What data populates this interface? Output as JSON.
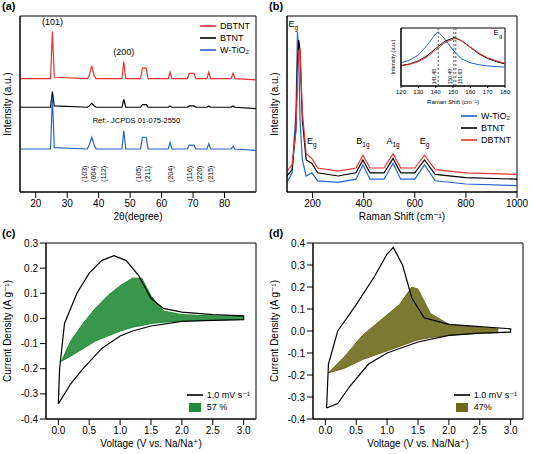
{
  "chart_data": [
    {
      "panel_label": "(a)",
      "type": "line",
      "x_label": "2θ(degree)",
      "y_label": "Intensity (a.u.)",
      "x": [
        15,
        24.7,
        25.3,
        25.9,
        36.4,
        37,
        37.8,
        38.6,
        39.2,
        47.4,
        48,
        48.6,
        53.3,
        53.9,
        55.1,
        55.7,
        62.1,
        62.7,
        63.3,
        68.2,
        68.8,
        70.3,
        70.9,
        74.4,
        75,
        75.6,
        82.1,
        82.7,
        83.3,
        90
      ],
      "series": [
        {
          "name": "DBTNT",
          "color": "#e8322f",
          "values": [
            62,
            62,
            98,
            63,
            62,
            64,
            72,
            64,
            62,
            62,
            75,
            62,
            62,
            70,
            70,
            62,
            62,
            67,
            62,
            62,
            66,
            66,
            62,
            62,
            67,
            62,
            62,
            66,
            62,
            61
          ]
        },
        {
          "name": "BTNT",
          "color": "#000000",
          "values": [
            40,
            40,
            52,
            41,
            40,
            41,
            43,
            41,
            40,
            40,
            46,
            40,
            40,
            42,
            42,
            40,
            40,
            41,
            40,
            40,
            41,
            41,
            40,
            40,
            41,
            40,
            40,
            41,
            40,
            39
          ]
        },
        {
          "name": "W-TiO₂",
          "color": "#2563c9",
          "values": [
            8,
            8,
            48,
            9,
            8,
            11,
            17,
            11,
            8,
            8,
            22,
            8,
            8,
            17,
            17,
            8,
            8,
            13,
            8,
            8,
            11,
            11,
            8,
            8,
            12,
            8,
            8,
            10,
            8,
            7
          ]
        }
      ],
      "xlim": [
        15,
        90
      ],
      "xticks": [
        20,
        30,
        40,
        50,
        60,
        70,
        80
      ],
      "ylim": [
        -25,
        110
      ],
      "tick_labels": "x",
      "legend": "upper right",
      "annotations": [
        {
          "text": "(101)",
          "x": 25.3,
          "y": 103
        },
        {
          "text": "(200)",
          "x": 48,
          "y": 80
        },
        {
          "text": "(103)",
          "x": 35.5,
          "y": -11
        },
        {
          "text": "(004)",
          "x": 38.5,
          "y": -11
        },
        {
          "text": "(112)",
          "x": 41.5,
          "y": -11
        },
        {
          "text": "(105)",
          "x": 52.5,
          "y": -11
        },
        {
          "text": "(211)",
          "x": 55.5,
          "y": -11
        },
        {
          "text": "(204)",
          "x": 62.7,
          "y": -11
        },
        {
          "text": "(116)",
          "x": 68.8,
          "y": -11
        },
        {
          "text": "(220)",
          "x": 72,
          "y": -11
        },
        {
          "text": "(215)",
          "x": 75.5,
          "y": -11
        },
        {
          "text": "Ref:- JCPDS 01-075-2550",
          "x": 52,
          "y": 28
        }
      ]
    },
    {
      "panel_label": "(b)",
      "type": "line",
      "x_label": "Raman Shift (cm⁻¹)",
      "y_label": "Intensity (a.u.)",
      "x": [
        100,
        120,
        135,
        141,
        146,
        151,
        160,
        175,
        197,
        220,
        300,
        370,
        397,
        425,
        480,
        515,
        545,
        600,
        638,
        680,
        800,
        1000
      ],
      "series": [
        {
          "name": "W-TiO₂",
          "color": "#2563c9",
          "values": [
            0.06,
            0.12,
            0.5,
            1.0,
            0.85,
            0.45,
            0.2,
            0.1,
            0.12,
            0.07,
            0.06,
            0.08,
            0.17,
            0.08,
            0.08,
            0.18,
            0.08,
            0.08,
            0.17,
            0.07,
            0.05,
            0.04
          ]
        },
        {
          "name": "BTNT",
          "color": "#000000",
          "values": [
            0.1,
            0.14,
            0.4,
            0.8,
            0.95,
            0.88,
            0.45,
            0.2,
            0.18,
            0.12,
            0.1,
            0.12,
            0.2,
            0.12,
            0.12,
            0.21,
            0.12,
            0.12,
            0.2,
            0.11,
            0.09,
            0.08
          ]
        },
        {
          "name": "DBTNT",
          "color": "#e8322f",
          "values": [
            0.13,
            0.17,
            0.38,
            0.72,
            0.88,
            0.9,
            0.5,
            0.24,
            0.21,
            0.15,
            0.13,
            0.15,
            0.23,
            0.15,
            0.15,
            0.24,
            0.15,
            0.15,
            0.23,
            0.14,
            0.12,
            0.11
          ]
        }
      ],
      "xlim": [
        100,
        1000
      ],
      "xticks": [
        200,
        400,
        600,
        800,
        1000
      ],
      "ylim": [
        0,
        1.1
      ],
      "tick_labels": "x",
      "legend": "right",
      "annotations": [
        {
          "text": "Eg",
          "x": 125,
          "y": 1.03
        },
        {
          "text": "Eg",
          "x": 197,
          "y": 0.3
        },
        {
          "text": "B1g",
          "x": 397,
          "y": 0.3
        },
        {
          "text": "A1g",
          "x": 515,
          "y": 0.3
        },
        {
          "text": "Eg",
          "x": 638,
          "y": 0.3
        }
      ],
      "inset": {
        "type": "line",
        "title": "Eg",
        "x_label": "Raman Shift (cm⁻¹)",
        "y_label": "Intensity (a.u.)",
        "x": [
          120,
          125,
          130,
          135,
          140,
          141.48,
          145,
          150.49,
          151.63,
          155,
          160,
          165,
          170,
          175,
          180
        ],
        "series": [
          {
            "color": "#2563c9",
            "values": [
              0.15,
              0.22,
              0.35,
              0.6,
              0.9,
              0.95,
              0.78,
              0.45,
              0.4,
              0.25,
              0.15,
              0.1,
              0.07,
              0.05,
              0.04
            ]
          },
          {
            "color": "#000000",
            "values": [
              0.08,
              0.12,
              0.2,
              0.33,
              0.52,
              0.57,
              0.7,
              0.8,
              0.79,
              0.72,
              0.55,
              0.38,
              0.26,
              0.18,
              0.12
            ]
          },
          {
            "color": "#e8322f",
            "values": [
              0.07,
              0.11,
              0.18,
              0.3,
              0.48,
              0.53,
              0.66,
              0.77,
              0.78,
              0.71,
              0.56,
              0.4,
              0.28,
              0.2,
              0.14
            ]
          }
        ],
        "xlim": [
          120,
          180
        ],
        "xticks": [
          120,
          130,
          140,
          150,
          160,
          170,
          180
        ],
        "ylim": [
          -0.45,
          1.05
        ],
        "tick_labels": "x",
        "peak_positions": [
          141.48,
          150.49,
          151.63
        ]
      }
    },
    {
      "panel_label": "(c)",
      "type": "line",
      "x_label": "Voltage (V vs. Na/Na⁺)",
      "y_label": "Current Density (A g⁻¹)",
      "xlim": [
        -0.2,
        3.2
      ],
      "xticks": [
        {
          "value": 0,
          "label": "0.0"
        },
        0.5,
        {
          "value": 1,
          "label": "1.0"
        },
        1.5,
        {
          "value": 2,
          "label": "2.0"
        },
        2.5,
        {
          "value": 3,
          "label": "3.0"
        }
      ],
      "ylim": [
        -0.4,
        0.3
      ],
      "yticks": [
        -0.4,
        -0.3,
        -0.2,
        -0.1,
        {
          "value": 0,
          "label": "0.0"
        },
        0.1,
        0.2,
        0.3
      ],
      "legend": "lower right",
      "series": [
        {
          "name": "1.0 mV s⁻¹",
          "color": "#000000",
          "type": "line",
          "x": [
            0,
            0.02,
            0.1,
            0.3,
            0.5,
            0.7,
            0.9,
            1.1,
            1.3,
            1.5,
            1.7,
            2.0,
            2.5,
            3.0,
            3.0,
            2.5,
            2.0,
            1.5,
            1.2,
            1.0,
            0.7,
            0.4,
            0.2,
            0
          ],
          "values": [
            -0.34,
            -0.2,
            -0.02,
            0.1,
            0.18,
            0.23,
            0.25,
            0.23,
            0.17,
            0.08,
            0.04,
            0.025,
            0.015,
            0.01,
            -0.005,
            -0.008,
            -0.012,
            -0.03,
            -0.05,
            -0.07,
            -0.12,
            -0.2,
            -0.26,
            -0.34
          ]
        },
        {
          "name": "57 %",
          "color": "#228b3a",
          "type": "area",
          "x": [
            0.05,
            0.2,
            0.4,
            0.6,
            0.8,
            1.0,
            1.2,
            1.35,
            1.5,
            1.7,
            2.0,
            2.5,
            3.0
          ],
          "upper": [
            -0.17,
            -0.09,
            -0.02,
            0.04,
            0.09,
            0.13,
            0.16,
            0.16,
            0.09,
            0.03,
            0.015,
            0.01,
            0.008
          ],
          "lower": [
            -0.17,
            -0.15,
            -0.12,
            -0.09,
            -0.07,
            -0.05,
            -0.035,
            -0.028,
            -0.02,
            -0.015,
            -0.01,
            -0.006,
            -0.004
          ]
        }
      ]
    },
    {
      "panel_label": "(d)",
      "type": "line",
      "x_label": "Voltage (V vs. Na/Na⁺)",
      "y_label": "Current Density (A g⁻¹)",
      "xlim": [
        -0.2,
        3.2
      ],
      "xticks": [
        {
          "value": 0,
          "label": "0.0"
        },
        0.5,
        {
          "value": 1,
          "label": "1.0"
        },
        1.5,
        {
          "value": 2,
          "label": "2.0"
        },
        2.5,
        {
          "value": 3,
          "label": "3.0"
        }
      ],
      "ylim": [
        -0.4,
        0.4
      ],
      "yticks": [
        -0.4,
        -0.3,
        -0.2,
        -0.1,
        {
          "value": 0,
          "label": "0.0"
        },
        0.1,
        0.2,
        0.3,
        0.4
      ],
      "legend": "lower right",
      "series": [
        {
          "name": "1.0 mV s⁻¹",
          "color": "#000000",
          "type": "line",
          "x": [
            0.02,
            0.05,
            0.2,
            0.5,
            0.8,
            1.0,
            1.1,
            1.25,
            1.4,
            1.6,
            2.0,
            2.5,
            3.0,
            3.0,
            2.5,
            2.0,
            1.5,
            1.0,
            0.7,
            0.4,
            0.2,
            0.02
          ],
          "values": [
            -0.35,
            -0.15,
            0.0,
            0.12,
            0.25,
            0.35,
            0.38,
            0.3,
            0.15,
            0.06,
            0.03,
            0.02,
            0.01,
            -0.005,
            -0.01,
            -0.02,
            -0.05,
            -0.1,
            -0.15,
            -0.25,
            -0.33,
            -0.35
          ]
        },
        {
          "name": "47%",
          "color": "#6e6a1c",
          "type": "area",
          "x": [
            0.05,
            0.3,
            0.6,
            0.9,
            1.2,
            1.4,
            1.5,
            1.7,
            2.0,
            2.5,
            2.8
          ],
          "upper": [
            -0.19,
            -0.12,
            -0.02,
            0.05,
            0.12,
            0.2,
            0.19,
            0.08,
            0.03,
            0.015,
            0.01
          ],
          "lower": [
            -0.19,
            -0.17,
            -0.13,
            -0.1,
            -0.07,
            -0.05,
            -0.04,
            -0.03,
            -0.02,
            -0.01,
            -0.008
          ]
        }
      ]
    }
  ]
}
